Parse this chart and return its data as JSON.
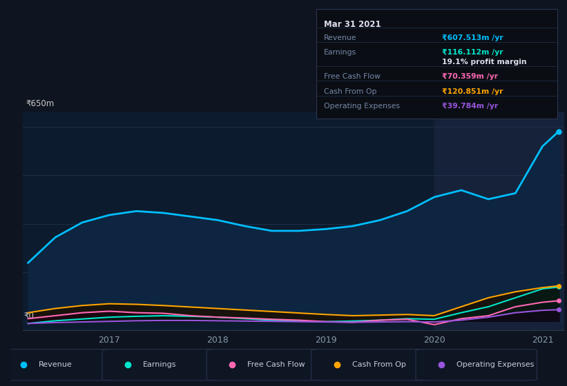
{
  "bg_color": "#0e1420",
  "plot_bg_dark": "#0d1b2e",
  "plot_bg_highlight": "#16223a",
  "years": [
    2016.25,
    2016.5,
    2016.75,
    2017.0,
    2017.25,
    2017.5,
    2017.75,
    2018.0,
    2018.25,
    2018.5,
    2018.75,
    2019.0,
    2019.25,
    2019.5,
    2019.75,
    2020.0,
    2020.25,
    2020.5,
    2020.75,
    2021.0,
    2021.15
  ],
  "revenue": [
    195,
    280,
    330,
    355,
    368,
    362,
    350,
    338,
    318,
    302,
    302,
    308,
    318,
    338,
    368,
    415,
    438,
    408,
    428,
    585,
    635
  ],
  "earnings": [
    -8,
    1,
    7,
    13,
    16,
    18,
    16,
    13,
    8,
    3,
    0,
    -2,
    0,
    3,
    8,
    6,
    28,
    48,
    78,
    108,
    114
  ],
  "free_cash_flow": [
    8,
    18,
    28,
    33,
    28,
    26,
    18,
    13,
    10,
    6,
    3,
    -2,
    -4,
    3,
    6,
    -12,
    8,
    18,
    48,
    63,
    68
  ],
  "cash_from_op": [
    28,
    42,
    52,
    58,
    56,
    52,
    47,
    42,
    37,
    32,
    27,
    22,
    18,
    20,
    22,
    18,
    48,
    78,
    98,
    112,
    118
  ],
  "operating_expenses": [
    -8,
    -5,
    -3,
    -1,
    1,
    2,
    2,
    1,
    0,
    -1,
    -2,
    -3,
    -4,
    -3,
    -2,
    -3,
    3,
    13,
    28,
    36,
    38
  ],
  "revenue_color": "#00bfff",
  "earnings_color": "#00e5cc",
  "free_cash_flow_color": "#ff69b4",
  "cash_from_op_color": "#ffa500",
  "operating_expenses_color": "#9955dd",
  "y_label_top": "₹650m",
  "y_label_zero": "₹0",
  "x_ticks": [
    2017,
    2018,
    2019,
    2020,
    2021
  ],
  "tooltip_date": "Mar 31 2021",
  "tooltip_revenue_label": "Revenue",
  "tooltip_revenue_value": "₹607.513m /yr",
  "tooltip_earnings_label": "Earnings",
  "tooltip_earnings_value": "₹116.112m /yr",
  "tooltip_margin": "19.1% profit margin",
  "tooltip_fcf_label": "Free Cash Flow",
  "tooltip_fcf_value": "₹70.359m /yr",
  "tooltip_cashop_label": "Cash From Op",
  "tooltip_cashop_value": "₹120.851m /yr",
  "tooltip_opex_label": "Operating Expenses",
  "tooltip_opex_value": "₹39.784m /yr",
  "legend_items": [
    "Revenue",
    "Earnings",
    "Free Cash Flow",
    "Cash From Op",
    "Operating Expenses"
  ],
  "legend_colors": [
    "#00bfff",
    "#00e5cc",
    "#ff69b4",
    "#ffa500",
    "#9955dd"
  ],
  "highlight_x_start": 2020.0,
  "ylim": [
    -30,
    700
  ],
  "xlim_start": 2016.2,
  "xlim_end": 2021.2
}
